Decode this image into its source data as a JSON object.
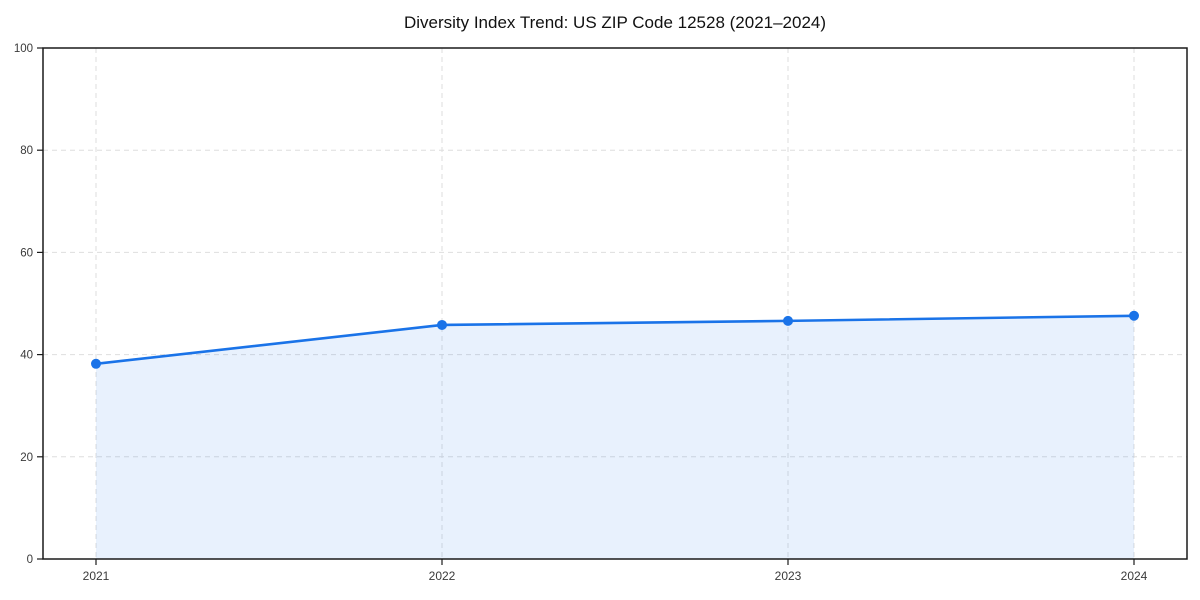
{
  "chart_data": {
    "type": "line",
    "title": "Diversity Index Trend: US ZIP Code 12528 (2021–2024)",
    "x": [
      "2021",
      "2022",
      "2023",
      "2024"
    ],
    "series": [
      {
        "name": "Diversity Index",
        "values": [
          38.2,
          45.8,
          46.6,
          47.6
        ]
      }
    ],
    "xlabel": "",
    "ylabel": "",
    "ylim": [
      0,
      100
    ],
    "yticks": [
      0,
      20,
      40,
      60,
      80,
      100
    ],
    "grid": true,
    "grid_style": "dashed",
    "legend_position": "none",
    "marker": "circle",
    "colors": {
      "line": "#1a73e8",
      "fill": "#1a73e8",
      "fill_opacity": 0.1,
      "axis": "#1a1a1a",
      "grid": "#dedede",
      "tick_label": "#3a3a3a",
      "background": "#ffffff"
    }
  }
}
